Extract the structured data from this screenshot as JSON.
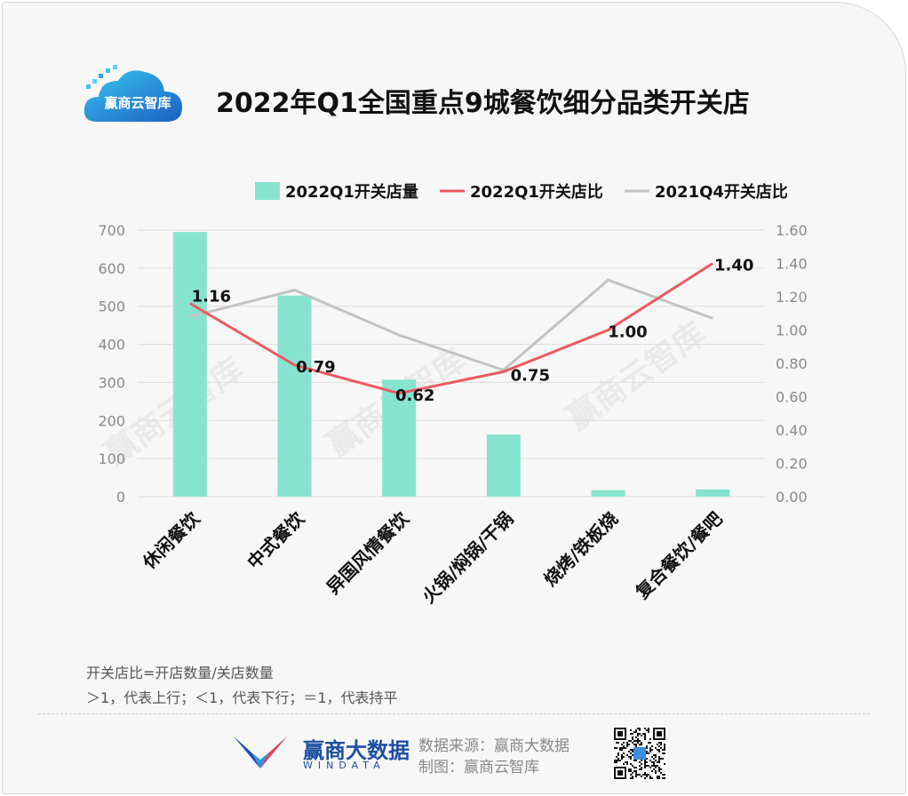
{
  "header": {
    "logo_text": "赢商云智库",
    "title": "2022年Q1全国重点9城餐饮细分品类开关店"
  },
  "chart_data": {
    "type": "bar+line",
    "categories": [
      "休闲餐饮",
      "中式餐饮",
      "异国风情餐饮",
      "火锅/焖锅/干锅",
      "烧烤/铁板烧",
      "复合餐饮/餐吧"
    ],
    "series": [
      {
        "name": "2022Q1开关店量",
        "type": "bar",
        "axis": "left",
        "values": [
          695,
          528,
          307,
          163,
          17,
          19
        ]
      },
      {
        "name": "2022Q1开关店比",
        "type": "line",
        "axis": "right",
        "values": [
          1.16,
          0.79,
          0.62,
          0.75,
          1.0,
          1.4
        ],
        "labels": [
          "1.16",
          "0.79",
          "0.62",
          "0.75",
          "1.00",
          "1.40"
        ]
      },
      {
        "name": "2021Q4开关店比",
        "type": "line",
        "axis": "right",
        "values": [
          1.08,
          1.24,
          0.97,
          0.76,
          1.3,
          1.07
        ]
      }
    ],
    "ylim_left": [
      0,
      700
    ],
    "yticks_left": [
      "0",
      "100",
      "200",
      "300",
      "400",
      "500",
      "600",
      "700"
    ],
    "ylim_right": [
      0,
      1.6
    ],
    "yticks_right": [
      "0.00",
      "0.20",
      "0.40",
      "0.60",
      "0.80",
      "1.00",
      "1.20",
      "1.40",
      "1.60"
    ],
    "legend_position": "top-right",
    "grid": true,
    "colors": {
      "bar": "#86e3cf",
      "line_2022": "#ec5a61",
      "line_2021": "#c3c3c3"
    },
    "watermark": "赢商云智库"
  },
  "notes": [
    "开关店比=开店数量/关店数量",
    "＞1，代表上行；＜1，代表下行；＝1，代表持平"
  ],
  "footer": {
    "brand_cn": "赢商大数据",
    "brand_en": "WINDATA",
    "source": "数据来源：赢商大数据",
    "made_by": "制图：赢商云智库"
  }
}
